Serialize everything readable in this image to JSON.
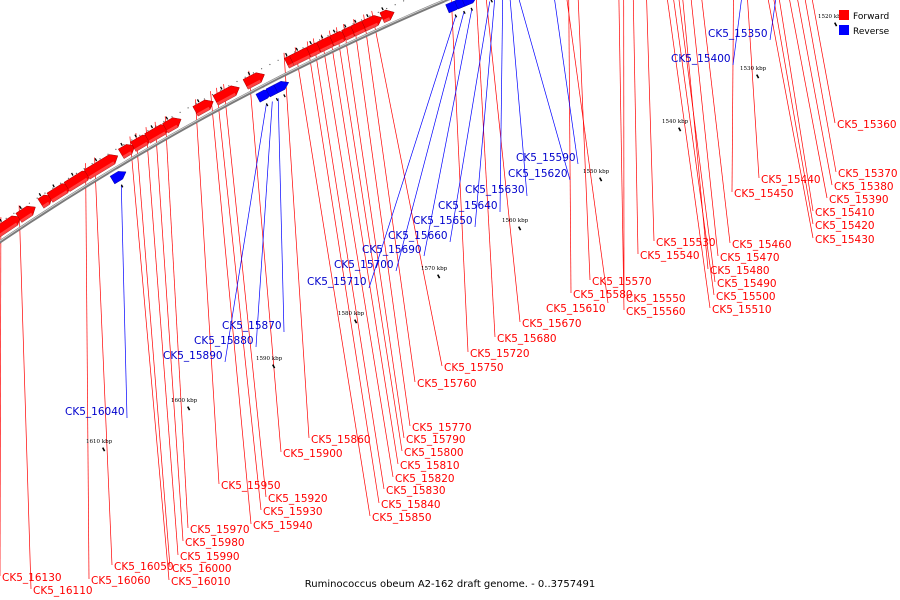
{
  "caption": "Ruminococcus obeum A2-162 draft genome. - 0..3757491",
  "legend": {
    "forward_label": "Forward",
    "reverse_label": "Reverse",
    "forward_color": "#ff0000",
    "reverse_color": "#0000ff"
  },
  "colors": {
    "forward_label": "#ff0000",
    "reverse_label": "#0000cc",
    "backbone": "#808080"
  },
  "kbp_labels": [
    "1520 kbp",
    "1530 kbp",
    "1540 kbp",
    "1550 kbp",
    "1560 kbp",
    "1570 kbp",
    "1580 kbp",
    "1590 kbp",
    "1600 kbp",
    "1610 kbp"
  ],
  "forward_genes": [
    "CK5_15360",
    "CK5_15370",
    "CK5_15380",
    "CK5_15390",
    "CK5_15410",
    "CK5_15420",
    "CK5_15430",
    "CK5_15440",
    "CK5_15450",
    "CK5_15460",
    "CK5_15470",
    "CK5_15480",
    "CK5_15490",
    "CK5_15500",
    "CK5_15510",
    "CK5_15530",
    "CK5_15540",
    "CK5_15550",
    "CK5_15560",
    "CK5_15570",
    "CK5_15580",
    "CK5_15610",
    "CK5_15670",
    "CK5_15680",
    "CK5_15720",
    "CK5_15750",
    "CK5_15760",
    "CK5_15770",
    "CK5_15790",
    "CK5_15800",
    "CK5_15810",
    "CK5_15820",
    "CK5_15830",
    "CK5_15840",
    "CK5_15850",
    "CK5_15860",
    "CK5_15900",
    "CK5_15920",
    "CK5_15930",
    "CK5_15940",
    "CK5_15950",
    "CK5_15970",
    "CK5_15980",
    "CK5_15990",
    "CK5_16000",
    "CK5_16010",
    "CK5_16050",
    "CK5_16060",
    "CK5_16110",
    "CK5_16130"
  ],
  "reverse_genes": [
    "CK5_15350",
    "CK5_15400",
    "CK5_15590",
    "CK5_15620",
    "CK5_15630",
    "CK5_15640",
    "CK5_15650",
    "CK5_15660",
    "CK5_15690",
    "CK5_15700",
    "CK5_15710",
    "CK5_15870",
    "CK5_15880",
    "CK5_15890",
    "CK5_16040"
  ]
}
